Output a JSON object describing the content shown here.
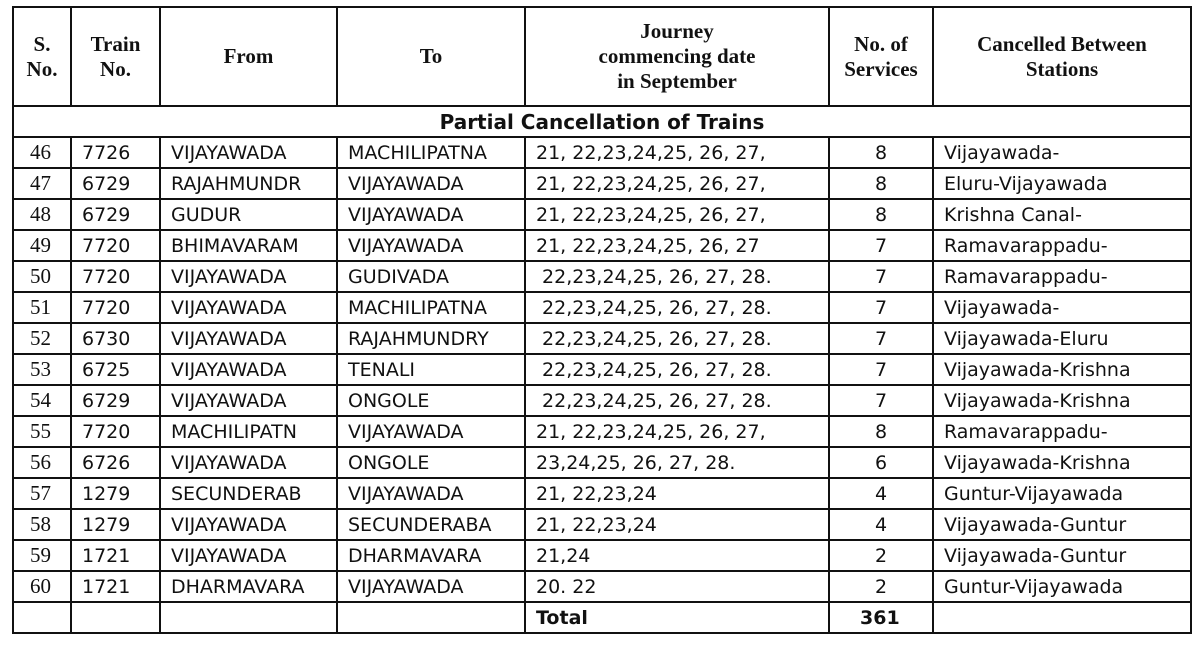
{
  "table": {
    "headers": [
      "S. No.",
      "Train No.",
      "From",
      "To",
      "Journey commencing date in September",
      "No. of Services",
      "Cancelled Between Stations"
    ],
    "section": "Partial Cancellation of Trains",
    "rows": [
      [
        "46",
        "7726",
        "VIJAYAWADA",
        "MACHILIPATNA",
        "21, 22,23,24,25, 26, 27,",
        "8",
        "Vijayawada-"
      ],
      [
        "47",
        "6729",
        "RAJAHMUNDR",
        "VIJAYAWADA",
        "21, 22,23,24,25, 26, 27,",
        "8",
        "Eluru-Vijayawada"
      ],
      [
        "48",
        "6729",
        "GUDUR",
        "VIJAYAWADA",
        "21, 22,23,24,25, 26, 27,",
        "8",
        "Krishna Canal-"
      ],
      [
        "49",
        "7720",
        "BHIMAVARAM",
        "VIJAYAWADA",
        "21, 22,23,24,25, 26, 27",
        "7",
        "Ramavarappadu-"
      ],
      [
        "50",
        "7720",
        "VIJAYAWADA",
        "GUDIVADA",
        " 22,23,24,25, 26, 27, 28.",
        "7",
        "Ramavarappadu-"
      ],
      [
        "51",
        "7720",
        "VIJAYAWADA",
        "MACHILIPATNA",
        " 22,23,24,25, 26, 27, 28.",
        "7",
        "Vijayawada-"
      ],
      [
        "52",
        "6730",
        "VIJAYAWADA",
        "RAJAHMUNDRY",
        " 22,23,24,25, 26, 27, 28.",
        "7",
        "Vijayawada-Eluru"
      ],
      [
        "53",
        "6725",
        "VIJAYAWADA",
        "TENALI",
        " 22,23,24,25, 26, 27, 28.",
        "7",
        "Vijayawada-Krishna"
      ],
      [
        "54",
        "6729",
        "VIJAYAWADA",
        "ONGOLE",
        " 22,23,24,25, 26, 27, 28.",
        "7",
        "Vijayawada-Krishna"
      ],
      [
        "55",
        "7720",
        "MACHILIPATN",
        "VIJAYAWADA",
        "21, 22,23,24,25, 26, 27,",
        "8",
        "Ramavarappadu-"
      ],
      [
        "56",
        "6726",
        "VIJAYAWADA",
        "ONGOLE",
        "23,24,25, 26, 27, 28.",
        "6",
        "Vijayawada-Krishna"
      ],
      [
        "57",
        "1279",
        "SECUNDERAB",
        "VIJAYAWADA",
        "21, 22,23,24",
        "4",
        "Guntur-Vijayawada"
      ],
      [
        "58",
        "1279",
        "VIJAYAWADA",
        "SECUNDERABA",
        "21, 22,23,24",
        "4",
        "Vijayawada-Guntur"
      ],
      [
        "59",
        "1721",
        "VIJAYAWADA",
        "DHARMAVARA",
        "21,24",
        "2",
        "Vijayawada-Guntur"
      ],
      [
        "60",
        "1721",
        "DHARMAVARA",
        "VIJAYAWADA",
        "20. 22",
        "2",
        "Guntur-Vijayawada"
      ]
    ],
    "total_label": "Total",
    "total_value": "361"
  }
}
